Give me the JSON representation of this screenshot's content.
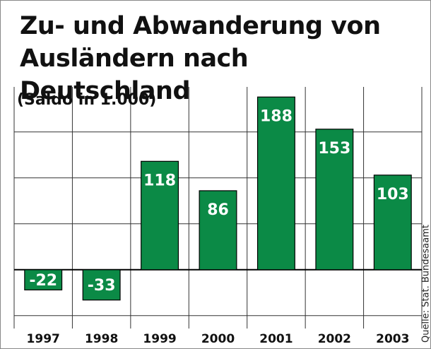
{
  "chart_data": {
    "type": "bar",
    "title": "Zu- und Abwanderung von Ausländern nach Deutschland",
    "subtitle": "(Saldo in 1.000)",
    "source": "Quelle: Stat. Bundesaamt",
    "categories": [
      "1997",
      "1998",
      "1999",
      "2000",
      "2001",
      "2002",
      "2003"
    ],
    "values": [
      -22,
      -33,
      118,
      86,
      188,
      153,
      103
    ],
    "color": "#0b8a46",
    "ylim": [
      -64,
      199
    ],
    "grid": true
  }
}
